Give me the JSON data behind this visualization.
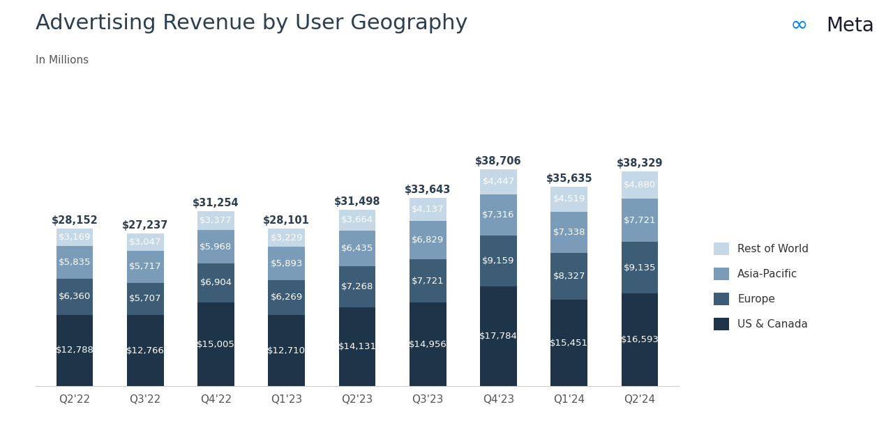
{
  "title": "Advertising Revenue by User Geography",
  "subtitle": "In Millions",
  "categories": [
    "Q2'22",
    "Q3'22",
    "Q4'22",
    "Q1'23",
    "Q2'23",
    "Q3'23",
    "Q4'23",
    "Q1'24",
    "Q2'24"
  ],
  "series": {
    "US & Canada": [
      12788,
      12766,
      15005,
      12710,
      14131,
      14956,
      17784,
      15451,
      16593
    ],
    "Europe": [
      6360,
      5707,
      6904,
      6269,
      7268,
      7721,
      9159,
      8327,
      9135
    ],
    "Asia-Pacific": [
      5835,
      5717,
      5968,
      5893,
      6435,
      6829,
      7316,
      7338,
      7721
    ],
    "Rest of World": [
      3169,
      3047,
      3377,
      3229,
      3664,
      4137,
      4447,
      4519,
      4880
    ]
  },
  "totals": [
    28152,
    27237,
    31254,
    28101,
    31498,
    33643,
    38706,
    35635,
    38329
  ],
  "colors": {
    "US & Canada": "#1e3448",
    "Europe": "#3d5c76",
    "Asia-Pacific": "#7a9cb8",
    "Rest of World": "#c5d8e8"
  },
  "bar_width": 0.52,
  "background_color": "#ffffff",
  "title_fontsize": 22,
  "subtitle_fontsize": 11,
  "label_fontsize": 9.5,
  "total_fontsize": 10.5,
  "tick_fontsize": 11,
  "legend_fontsize": 11,
  "ylim": [
    0,
    47000
  ],
  "title_color": "#2c3e50",
  "subtitle_color": "#555555",
  "tick_color": "#555555",
  "label_color": "#ffffff",
  "total_color": "#2c3e50",
  "meta_symbol_color": "#0082FB",
  "meta_text_color": "#1a1a2e"
}
